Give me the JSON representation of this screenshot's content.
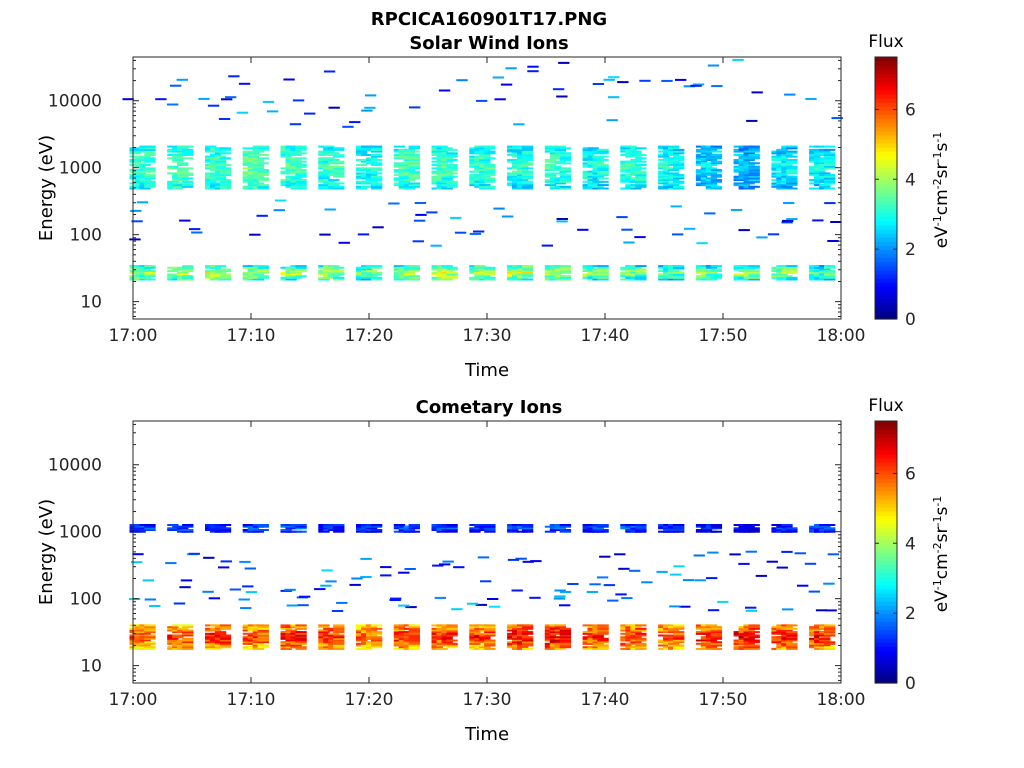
{
  "figure": {
    "title": "RPCICA160901T17.PNG"
  },
  "colorscale": {
    "label": "Flux",
    "unit_parts": [
      "eV",
      "-1",
      "cm",
      "-2",
      "sr",
      "-1",
      "s",
      "-1"
    ],
    "ticks": [
      "0",
      "2",
      "4",
      "6"
    ],
    "range": [
      0,
      7.5
    ],
    "colormap": "jet"
  },
  "chart_data": [
    {
      "type": "heatmap",
      "title": "Solar Wind Ions",
      "xlabel": "Time",
      "ylabel": "Energy (eV)",
      "xticks": [
        "17:00",
        "17:10",
        "17:20",
        "17:30",
        "17:40",
        "17:50",
        "18:00"
      ],
      "xlim_minutes": [
        0,
        60
      ],
      "yscale": "log",
      "ylim": [
        5.5,
        45000
      ],
      "yticks": [
        "10",
        "100",
        "1000",
        "10000"
      ],
      "yticks_values": [
        10,
        100,
        1000,
        10000
      ],
      "bursts": [
        {
          "t": 0.5,
          "flux_high": 3.3,
          "flux_low": 3.6
        },
        {
          "t": 3.7,
          "flux_high": 3.4,
          "flux_low": 3.8
        },
        {
          "t": 6.9,
          "flux_high": 3.3,
          "flux_low": 3.9
        },
        {
          "t": 10.1,
          "flux_high": 3.5,
          "flux_low": 3.7
        },
        {
          "t": 13.3,
          "flux_high": 3.4,
          "flux_low": 3.6
        },
        {
          "t": 16.5,
          "flux_high": 3.2,
          "flux_low": 3.8
        },
        {
          "t": 19.7,
          "flux_high": 3.1,
          "flux_low": 3.4
        },
        {
          "t": 22.9,
          "flux_high": 3.4,
          "flux_low": 3.6
        },
        {
          "t": 26.1,
          "flux_high": 3.3,
          "flux_low": 3.9
        },
        {
          "t": 29.3,
          "flux_high": 3.2,
          "flux_low": 3.7
        },
        {
          "t": 32.5,
          "flux_high": 3.1,
          "flux_low": 3.9
        },
        {
          "t": 35.7,
          "flux_high": 3.2,
          "flux_low": 3.8
        },
        {
          "t": 38.9,
          "flux_high": 3.0,
          "flux_low": 3.5
        },
        {
          "t": 42.1,
          "flux_high": 3.2,
          "flux_low": 3.4
        },
        {
          "t": 45.3,
          "flux_high": 3.0,
          "flux_low": 3.2
        },
        {
          "t": 48.5,
          "flux_high": 2.6,
          "flux_low": 3.3
        },
        {
          "t": 51.7,
          "flux_high": 2.4,
          "flux_low": 3.6
        },
        {
          "t": 54.9,
          "flux_high": 2.7,
          "flux_low": 3.6
        },
        {
          "t": 58.1,
          "flux_high": 2.8,
          "flux_low": 3.2
        }
      ]
    },
    {
      "type": "heatmap",
      "title": "Cometary Ions",
      "xlabel": "Time",
      "ylabel": "Energy (eV)",
      "xticks": [
        "17:00",
        "17:10",
        "17:20",
        "17:30",
        "17:40",
        "17:50",
        "18:00"
      ],
      "xlim_minutes": [
        0,
        60
      ],
      "yscale": "log",
      "ylim": [
        5.5,
        45000
      ],
      "yticks": [
        "10",
        "100",
        "1000",
        "10000"
      ],
      "yticks_values": [
        10,
        100,
        1000,
        10000
      ],
      "bursts": [
        {
          "t": 0.5,
          "flux_high": 1.4,
          "flux_low": 5.6
        },
        {
          "t": 3.7,
          "flux_high": 1.5,
          "flux_low": 5.8
        },
        {
          "t": 6.9,
          "flux_high": 1.3,
          "flux_low": 6.0
        },
        {
          "t": 10.1,
          "flux_high": 1.4,
          "flux_low": 5.7
        },
        {
          "t": 13.3,
          "flux_high": 1.5,
          "flux_low": 6.1
        },
        {
          "t": 16.5,
          "flux_high": 1.4,
          "flux_low": 5.9
        },
        {
          "t": 19.7,
          "flux_high": 1.3,
          "flux_low": 5.6
        },
        {
          "t": 22.9,
          "flux_high": 1.5,
          "flux_low": 5.9
        },
        {
          "t": 26.1,
          "flux_high": 1.4,
          "flux_low": 6.0
        },
        {
          "t": 29.3,
          "flux_high": 1.3,
          "flux_low": 5.8
        },
        {
          "t": 32.5,
          "flux_high": 1.4,
          "flux_low": 6.2
        },
        {
          "t": 35.7,
          "flux_high": 1.5,
          "flux_low": 6.3
        },
        {
          "t": 38.9,
          "flux_high": 1.3,
          "flux_low": 5.9
        },
        {
          "t": 42.1,
          "flux_high": 1.4,
          "flux_low": 6.0
        },
        {
          "t": 45.3,
          "flux_high": 1.3,
          "flux_low": 5.8
        },
        {
          "t": 48.5,
          "flux_high": 1.1,
          "flux_low": 6.1
        },
        {
          "t": 51.7,
          "flux_high": 0.8,
          "flux_low": 6.2
        },
        {
          "t": 54.9,
          "flux_high": 1.3,
          "flux_low": 6.1
        },
        {
          "t": 58.1,
          "flux_high": 1.4,
          "flux_low": 6.0
        }
      ]
    }
  ]
}
